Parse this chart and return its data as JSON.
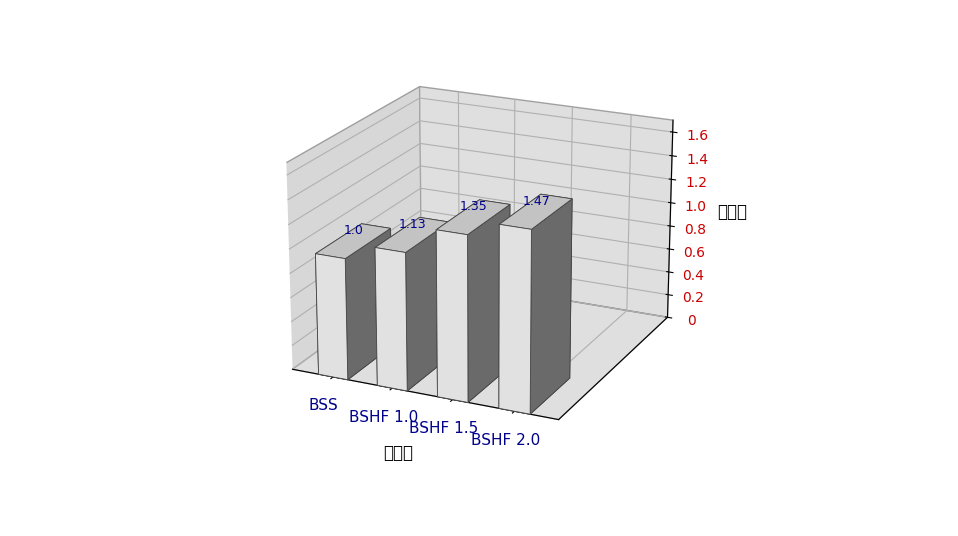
{
  "categories": [
    "BSS",
    "BSHF 1.0",
    "BSHF 1.5",
    "BSHF 2.0"
  ],
  "values": [
    1.0,
    1.13,
    1.35,
    1.47
  ],
  "xlabel": "실험체",
  "ylabel": "내력비",
  "ylim": [
    0,
    1.7
  ],
  "yticks": [
    0,
    0.2,
    0.4,
    0.6,
    0.8,
    1.0,
    1.2,
    1.4,
    1.6
  ],
  "bar_face_color": "#ffffff",
  "bar_side_color": "#888888",
  "bar_top_color": "#cccccc",
  "background_color": "#c0c0c0",
  "floor_color": "#888888",
  "bar_edge_color": "#444444",
  "value_color": "#00008b",
  "xtick_color": "#00008b",
  "ytick_color": "#cc0000",
  "label_color": "#000000",
  "bar_width": 0.5,
  "bar_depth": 0.4,
  "value_fontsize": 9,
  "label_fontsize": 11,
  "tick_fontsize": 10
}
